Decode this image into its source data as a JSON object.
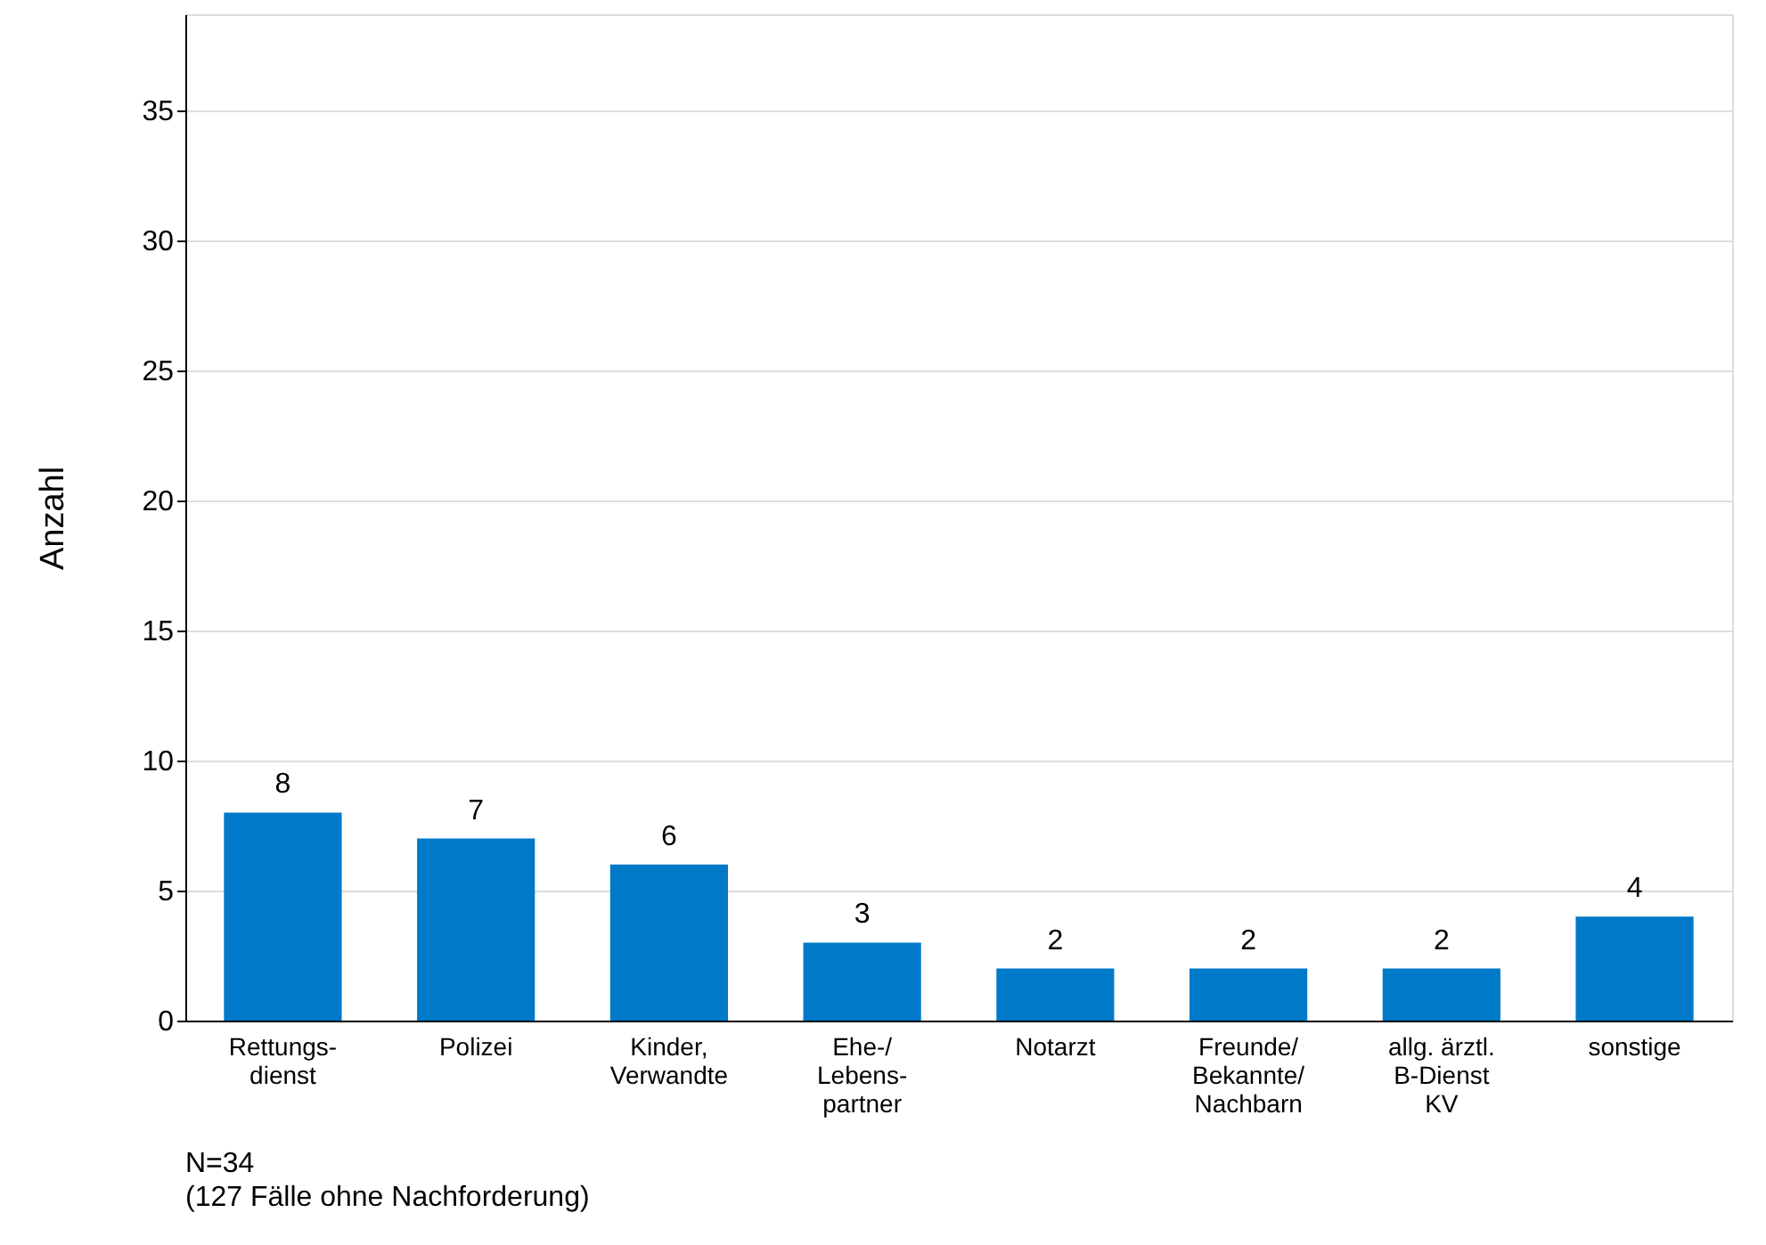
{
  "chart_data": {
    "type": "bar",
    "ylabel": "Anzahl",
    "categories": [
      "Rettungs-\ndienst",
      "Polizei",
      "Kinder,\nVerwandte",
      "Ehe-/\nLebens-\npartner",
      "Notarzt",
      "Freunde/\nBekannte/\nNachbarn",
      "allg. ärztl.\nB-Dienst\nKV",
      "sonstige"
    ],
    "values": [
      8,
      7,
      6,
      3,
      2,
      2,
      2,
      4
    ],
    "color": "#0079c9",
    "ylim": [
      0,
      38.7
    ],
    "yticks": [
      0,
      5,
      10,
      15,
      20,
      25,
      30,
      35
    ],
    "grid": "y",
    "data_labels": true,
    "annotations": [
      "N=34",
      "(127 Fälle ohne Nachforderung)"
    ]
  }
}
